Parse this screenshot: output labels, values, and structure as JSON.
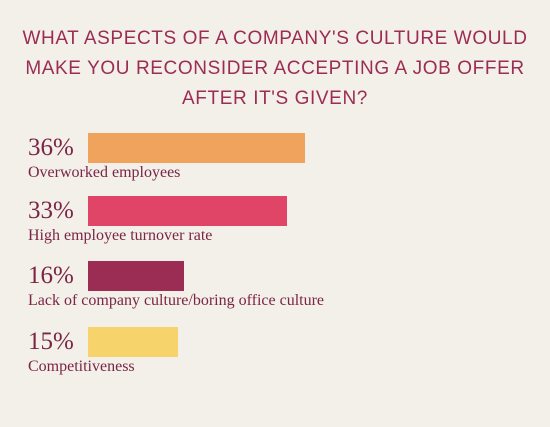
{
  "chart_data": {
    "type": "bar",
    "orientation": "horizontal",
    "title_lines": [
      "WHAT ASPECTS OF A COMPANY'S CULTURE WOULD",
      "MAKE YOU RECONSIDER ACCEPTING A JOB OFFER",
      "AFTER IT'S GIVEN?"
    ],
    "categories": [
      "Overworked employees",
      "High employee turnover rate",
      "Lack of company culture/boring office culture",
      "Competitiveness"
    ],
    "values": [
      36,
      33,
      16,
      15
    ],
    "value_labels": [
      "36%",
      "33%",
      "16%",
      "15%"
    ],
    "unit": "%",
    "bar_colors": [
      "#f0a35c",
      "#e04466",
      "#9b2d55",
      "#f7d36b"
    ],
    "grid": false,
    "legend": "none"
  }
}
